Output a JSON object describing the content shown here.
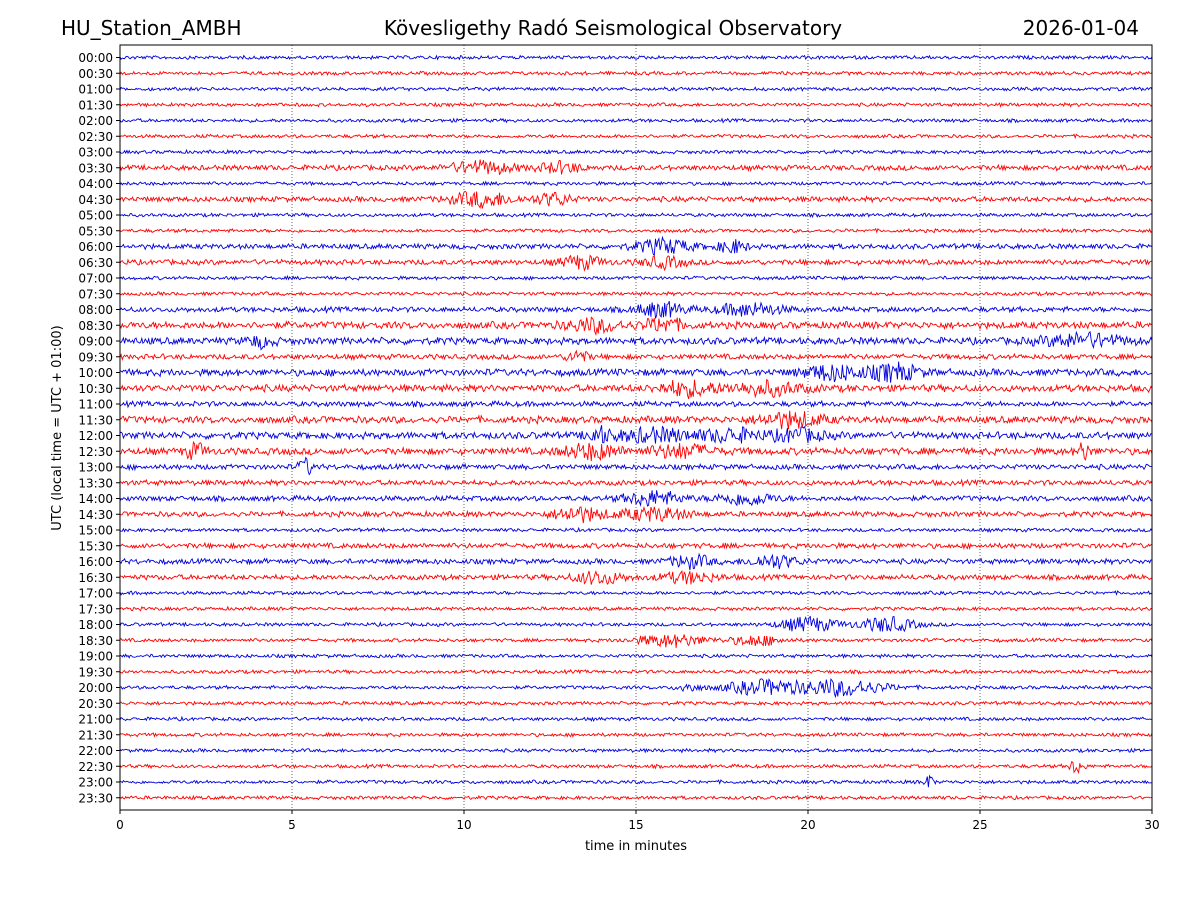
{
  "header": {
    "station": "HU_Station_AMBH",
    "observatory": "Kövesligethy Radó Seismological Observatory",
    "date": "2026-01-04"
  },
  "chart_data": {
    "type": "line",
    "title": "Kövesligethy Radó Seismological Observatory",
    "xlabel": "time in minutes",
    "ylabel": "UTC (local time = UTC + 01:00)",
    "xlim": [
      0,
      30
    ],
    "x_ticks": [
      0,
      5,
      10,
      15,
      20,
      25,
      30
    ],
    "x_tick_labels": [
      "0",
      "5",
      "10",
      "15",
      "20",
      "25",
      "30"
    ],
    "grid": "vertical dotted at 5-minute ticks",
    "row_labels": [
      "00:00",
      "00:30",
      "01:00",
      "01:30",
      "02:00",
      "02:30",
      "03:00",
      "03:30",
      "04:00",
      "04:30",
      "05:00",
      "05:30",
      "06:00",
      "06:30",
      "07:00",
      "07:30",
      "08:00",
      "08:30",
      "09:00",
      "09:30",
      "10:00",
      "10:30",
      "11:00",
      "11:30",
      "12:00",
      "12:30",
      "13:00",
      "13:30",
      "14:00",
      "14:30",
      "15:00",
      "15:30",
      "16:00",
      "16:30",
      "17:00",
      "17:30",
      "18:00",
      "18:30",
      "19:00",
      "19:30",
      "20:00",
      "20:30",
      "21:00",
      "21:30",
      "22:00",
      "22:30",
      "23:00",
      "23:30"
    ],
    "colors": {
      "even_rows": "#0000dd",
      "odd_rows": "#ff0000"
    },
    "base_amplitude": [
      2,
      2,
      2,
      2,
      2,
      2,
      2,
      3,
      2,
      3,
      2,
      2,
      3,
      3,
      2,
      2,
      3,
      4,
      4,
      3,
      4,
      4,
      3,
      4,
      4,
      4,
      3,
      3,
      3,
      3,
      2,
      3,
      3,
      3,
      2,
      2,
      2,
      2,
      2,
      2,
      2,
      2,
      2,
      2,
      2,
      2,
      2,
      2
    ],
    "bursts": [
      {
        "row": 7,
        "minute": 10.5,
        "width": 0.9,
        "amp": 6
      },
      {
        "row": 7,
        "minute": 12.8,
        "width": 0.6,
        "amp": 5
      },
      {
        "row": 9,
        "minute": 10.5,
        "width": 0.9,
        "amp": 7
      },
      {
        "row": 9,
        "minute": 12.6,
        "width": 0.5,
        "amp": 6
      },
      {
        "row": 12,
        "minute": 15.8,
        "width": 0.8,
        "amp": 7
      },
      {
        "row": 12,
        "minute": 17.8,
        "width": 0.4,
        "amp": 6
      },
      {
        "row": 13,
        "minute": 13.4,
        "width": 0.6,
        "amp": 6
      },
      {
        "row": 13,
        "minute": 15.8,
        "width": 0.6,
        "amp": 5
      },
      {
        "row": 16,
        "minute": 15.7,
        "width": 0.7,
        "amp": 7
      },
      {
        "row": 16,
        "minute": 18.3,
        "width": 0.9,
        "amp": 6
      },
      {
        "row": 17,
        "minute": 13.8,
        "width": 0.8,
        "amp": 6
      },
      {
        "row": 17,
        "minute": 15.8,
        "width": 0.6,
        "amp": 6
      },
      {
        "row": 18,
        "minute": 4.1,
        "width": 0.4,
        "amp": 5
      },
      {
        "row": 18,
        "minute": 28.0,
        "width": 1.2,
        "amp": 6
      },
      {
        "row": 19,
        "minute": 13.3,
        "width": 0.3,
        "amp": 6
      },
      {
        "row": 20,
        "minute": 20.7,
        "width": 0.8,
        "amp": 7
      },
      {
        "row": 20,
        "minute": 22.5,
        "width": 0.7,
        "amp": 8
      },
      {
        "row": 21,
        "minute": 16.5,
        "width": 0.8,
        "amp": 7
      },
      {
        "row": 21,
        "minute": 18.8,
        "width": 1.0,
        "amp": 6
      },
      {
        "row": 23,
        "minute": 19.5,
        "width": 0.9,
        "amp": 7
      },
      {
        "row": 24,
        "minute": 13.9,
        "width": 0.3,
        "amp": 7
      },
      {
        "row": 24,
        "minute": 15.5,
        "width": 1.2,
        "amp": 6
      },
      {
        "row": 24,
        "minute": 17.8,
        "width": 0.8,
        "amp": 6
      },
      {
        "row": 24,
        "minute": 19.7,
        "width": 0.7,
        "amp": 6
      },
      {
        "row": 25,
        "minute": 2.2,
        "width": 0.3,
        "amp": 7
      },
      {
        "row": 25,
        "minute": 13.7,
        "width": 0.8,
        "amp": 7
      },
      {
        "row": 25,
        "minute": 16.3,
        "width": 0.9,
        "amp": 6
      },
      {
        "row": 25,
        "minute": 28.0,
        "width": 0.2,
        "amp": 8
      },
      {
        "row": 26,
        "minute": 5.4,
        "width": 0.2,
        "amp": 8
      },
      {
        "row": 28,
        "minute": 15.5,
        "width": 0.8,
        "amp": 7
      },
      {
        "row": 28,
        "minute": 18.2,
        "width": 0.8,
        "amp": 6
      },
      {
        "row": 29,
        "minute": 13.3,
        "width": 0.7,
        "amp": 7
      },
      {
        "row": 29,
        "minute": 15.5,
        "width": 1.0,
        "amp": 6
      },
      {
        "row": 32,
        "minute": 16.6,
        "width": 0.6,
        "amp": 6
      },
      {
        "row": 32,
        "minute": 19.0,
        "width": 0.7,
        "amp": 6
      },
      {
        "row": 33,
        "minute": 13.9,
        "width": 0.7,
        "amp": 6
      },
      {
        "row": 33,
        "minute": 16.5,
        "width": 0.8,
        "amp": 5
      },
      {
        "row": 36,
        "minute": 20.0,
        "width": 0.8,
        "amp": 7
      },
      {
        "row": 36,
        "minute": 22.3,
        "width": 0.8,
        "amp": 7
      },
      {
        "row": 37,
        "minute": 16.0,
        "width": 1.0,
        "amp": 6
      },
      {
        "row": 37,
        "minute": 18.5,
        "width": 0.7,
        "amp": 5
      },
      {
        "row": 40,
        "minute": 16.5,
        "width": 0.3,
        "amp": 4
      },
      {
        "row": 40,
        "minute": 18.7,
        "width": 1.1,
        "amp": 7
      },
      {
        "row": 40,
        "minute": 21.0,
        "width": 1.2,
        "amp": 8
      },
      {
        "row": 45,
        "minute": 27.8,
        "width": 0.2,
        "amp": 7
      },
      {
        "row": 46,
        "minute": 23.5,
        "width": 0.15,
        "amp": 6
      }
    ]
  }
}
